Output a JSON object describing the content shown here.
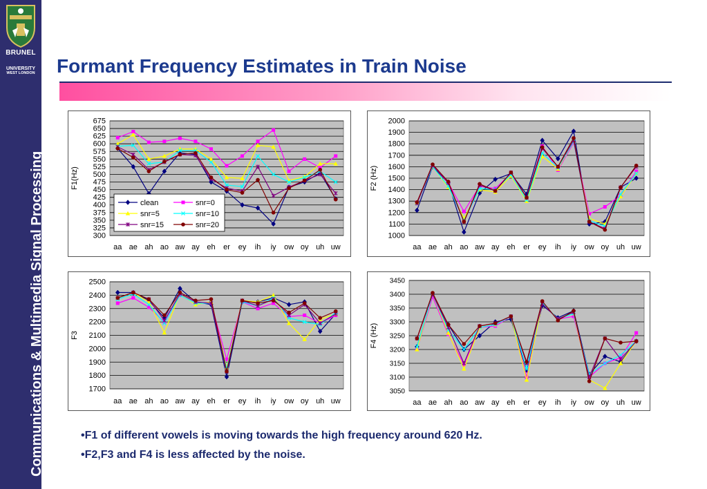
{
  "title": "Formant Frequency Estimates in Train Noise",
  "sidebar": {
    "logo_name": "BRUNEL",
    "logo_sub": "UNIVERSITY",
    "logo_sub2": "WEST LONDON",
    "vertical_text": "Communications & Multimedia Signal Processing"
  },
  "bullets": [
    "•F1 of different vowels is moving towards the high frequency  around 620 Hz.",
    "•F2,F3 and F4 is less affected by the noise."
  ],
  "colors": {
    "sidebar_bg": "#2e2e6e",
    "title": "#1c3a8e",
    "plot_area": "#c0c0c0",
    "clean": "#000080",
    "snr0": "#ff00ff",
    "snr5": "#ffff00",
    "snr10": "#00ffff",
    "snr15": "#800080",
    "snr20": "#800000"
  },
  "chart_data": [
    {
      "type": "line",
      "ylabel": "F1(Hz)",
      "xlabel": "",
      "ylim": [
        300,
        675
      ],
      "yticks": [
        300,
        325,
        350,
        375,
        400,
        425,
        450,
        475,
        500,
        525,
        550,
        575,
        600,
        625,
        650,
        675
      ],
      "categories": [
        "aa",
        "ae",
        "ah",
        "ao",
        "aw",
        "ay",
        "eh",
        "er",
        "ey",
        "ih",
        "iy",
        "ow",
        "oy",
        "uh",
        "uw"
      ],
      "legend": true,
      "series": [
        {
          "name": "clean",
          "values": [
            585,
            525,
            437,
            510,
            570,
            565,
            475,
            445,
            400,
            390,
            338,
            458,
            475,
            505,
            420
          ]
        },
        {
          "name": "snr=0",
          "values": [
            620,
            640,
            605,
            608,
            618,
            608,
            583,
            528,
            560,
            608,
            645,
            510,
            550,
            522,
            560
          ]
        },
        {
          "name": "snr=5",
          "values": [
            600,
            630,
            550,
            560,
            583,
            583,
            550,
            490,
            487,
            595,
            590,
            480,
            492,
            535,
            535
          ]
        },
        {
          "name": "snr=10",
          "values": [
            592,
            595,
            535,
            540,
            578,
            578,
            540,
            465,
            460,
            560,
            500,
            475,
            490,
            510,
            475
          ]
        },
        {
          "name": "snr=15",
          "values": [
            590,
            565,
            515,
            540,
            565,
            562,
            485,
            455,
            445,
            525,
            430,
            458,
            480,
            500,
            438
          ]
        },
        {
          "name": "snr=20",
          "values": [
            585,
            555,
            510,
            542,
            565,
            570,
            490,
            450,
            440,
            482,
            375,
            455,
            480,
            515,
            418
          ]
        }
      ]
    },
    {
      "type": "line",
      "ylabel": "F2 (Hz)",
      "xlabel": "",
      "ylim": [
        1000,
        2000
      ],
      "yticks": [
        1000,
        1100,
        1200,
        1300,
        1400,
        1500,
        1600,
        1700,
        1800,
        1900,
        2000
      ],
      "categories": [
        "aa",
        "ae",
        "ah",
        "ao",
        "aw",
        "ay",
        "eh",
        "er",
        "ey",
        "ih",
        "iy",
        "ow",
        "oy",
        "uh",
        "uw"
      ],
      "legend": false,
      "series": [
        {
          "name": "clean",
          "values": [
            1220,
            1600,
            1460,
            1030,
            1370,
            1490,
            1540,
            1360,
            1830,
            1670,
            1910,
            1100,
            1120,
            1420,
            1500
          ]
        },
        {
          "name": "snr=0",
          "values": [
            1290,
            1610,
            1460,
            1210,
            1430,
            1410,
            1540,
            1330,
            1780,
            1570,
            1810,
            1190,
            1250,
            1350,
            1560
          ]
        },
        {
          "name": "snr=5",
          "values": [
            1290,
            1600,
            1420,
            1150,
            1400,
            1380,
            1520,
            1300,
            1690,
            1580,
            1820,
            1150,
            1100,
            1340,
            1540
          ]
        },
        {
          "name": "snr=10",
          "values": [
            1280,
            1600,
            1430,
            1130,
            1410,
            1400,
            1530,
            1310,
            1720,
            1590,
            1820,
            1130,
            1080,
            1360,
            1540
          ]
        },
        {
          "name": "snr=15",
          "values": [
            1280,
            1610,
            1460,
            1120,
            1440,
            1390,
            1550,
            1330,
            1760,
            1600,
            1830,
            1120,
            1060,
            1420,
            1600
          ]
        },
        {
          "name": "snr=20",
          "values": [
            1290,
            1620,
            1470,
            1120,
            1450,
            1390,
            1550,
            1330,
            1770,
            1600,
            1850,
            1120,
            1050,
            1420,
            1610
          ]
        }
      ]
    },
    {
      "type": "line",
      "ylabel": "F3",
      "xlabel": "",
      "ylim": [
        1700,
        2500
      ],
      "yticks": [
        1700,
        1800,
        1900,
        2000,
        2100,
        2200,
        2300,
        2400,
        2500
      ],
      "categories": [
        "aa",
        "ae",
        "ah",
        "ao",
        "aw",
        "ay",
        "eh",
        "er",
        "ey",
        "ih",
        "iy",
        "ow",
        "oy",
        "uh",
        "uw"
      ],
      "legend": false,
      "series": [
        {
          "name": "clean",
          "values": [
            2420,
            2420,
            2360,
            2230,
            2450,
            2350,
            2330,
            1790,
            2350,
            2350,
            2380,
            2330,
            2350,
            2130,
            2260
          ]
        },
        {
          "name": "snr=0",
          "values": [
            2340,
            2380,
            2310,
            2200,
            2400,
            2340,
            2340,
            1920,
            2350,
            2300,
            2340,
            2240,
            2250,
            2190,
            2250
          ]
        },
        {
          "name": "snr=5",
          "values": [
            2380,
            2420,
            2350,
            2120,
            2410,
            2330,
            2350,
            1860,
            2360,
            2350,
            2400,
            2190,
            2070,
            2220,
            2260
          ]
        },
        {
          "name": "snr=10",
          "values": [
            2370,
            2410,
            2330,
            2190,
            2400,
            2340,
            2340,
            1850,
            2350,
            2320,
            2380,
            2230,
            2200,
            2180,
            2270
          ]
        },
        {
          "name": "snr=15",
          "values": [
            2380,
            2420,
            2370,
            2210,
            2410,
            2350,
            2340,
            1830,
            2360,
            2320,
            2370,
            2250,
            2330,
            2190,
            2260
          ]
        },
        {
          "name": "snr=20",
          "values": [
            2380,
            2420,
            2370,
            2250,
            2420,
            2360,
            2370,
            1830,
            2360,
            2340,
            2360,
            2270,
            2340,
            2230,
            2280
          ]
        }
      ]
    },
    {
      "type": "line",
      "ylabel": "F4 (Hz)",
      "xlabel": "",
      "ylim": [
        3050,
        3450
      ],
      "yticks": [
        3050,
        3100,
        3150,
        3200,
        3250,
        3300,
        3350,
        3400,
        3450
      ],
      "categories": [
        "aa",
        "ae",
        "ah",
        "ao",
        "aw",
        "ay",
        "eh",
        "er",
        "ey",
        "ih",
        "iy",
        "ow",
        "oy",
        "uh",
        "uw"
      ],
      "legend": false,
      "series": [
        {
          "name": "clean",
          "values": [
            3210,
            3400,
            3290,
            3200,
            3250,
            3300,
            3310,
            3125,
            3360,
            3315,
            3340,
            3110,
            3175,
            3155,
            3230
          ]
        },
        {
          "name": "snr=0",
          "values": [
            3200,
            3390,
            3255,
            3145,
            3280,
            3285,
            3320,
            3100,
            3370,
            3310,
            3320,
            3100,
            3150,
            3170,
            3260
          ]
        },
        {
          "name": "snr=5",
          "values": [
            3200,
            3400,
            3260,
            3130,
            3280,
            3290,
            3320,
            3090,
            3370,
            3310,
            3330,
            3090,
            3060,
            3150,
            3230
          ]
        },
        {
          "name": "snr=10",
          "values": [
            3210,
            3400,
            3270,
            3200,
            3280,
            3290,
            3320,
            3130,
            3370,
            3310,
            3330,
            3110,
            3150,
            3180,
            3230
          ]
        },
        {
          "name": "snr=15",
          "values": [
            3240,
            3400,
            3280,
            3150,
            3285,
            3295,
            3320,
            3150,
            3365,
            3310,
            3335,
            3100,
            3240,
            3165,
            3230
          ]
        },
        {
          "name": "snr=20",
          "values": [
            3240,
            3405,
            3290,
            3220,
            3285,
            3295,
            3320,
            3155,
            3375,
            3305,
            3340,
            3085,
            3240,
            3225,
            3230
          ]
        }
      ]
    }
  ]
}
